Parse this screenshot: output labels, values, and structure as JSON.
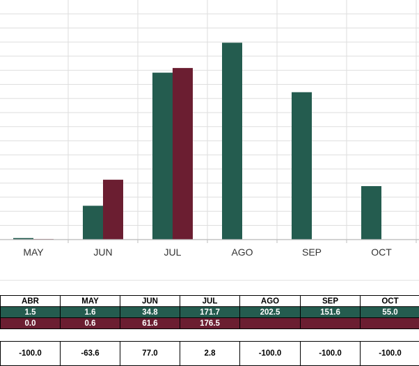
{
  "colors": {
    "series_a": "#245c4f",
    "series_b": "#6b1e31",
    "grid": "#dedede",
    "axis": "#bdbdbd"
  },
  "chart_data": {
    "type": "bar",
    "categories": [
      "MAY",
      "JUN",
      "JUL",
      "AGO",
      "SEP",
      "OCT"
    ],
    "series": [
      {
        "values": [
          1.6,
          34.8,
          171.7,
          202.5,
          151.6,
          55.0
        ]
      },
      {
        "values": [
          0.6,
          61.6,
          176.5,
          null,
          null,
          null
        ]
      }
    ],
    "grid": true
  },
  "table": {
    "months": [
      "ABR",
      "MAY",
      "JUN",
      "JUL",
      "AGO",
      "SEP",
      "OCT"
    ],
    "series_a": [
      "1.5",
      "1.6",
      "34.8",
      "171.7",
      "202.5",
      "151.6",
      "55.0"
    ],
    "series_b": [
      "0.0",
      "0.6",
      "61.6",
      "176.5",
      "",
      "",
      ""
    ],
    "pct_change": [
      "-100.0",
      "-63.6",
      "77.0",
      "2.8",
      "-100.0",
      "-100.0",
      "-100.0"
    ]
  }
}
